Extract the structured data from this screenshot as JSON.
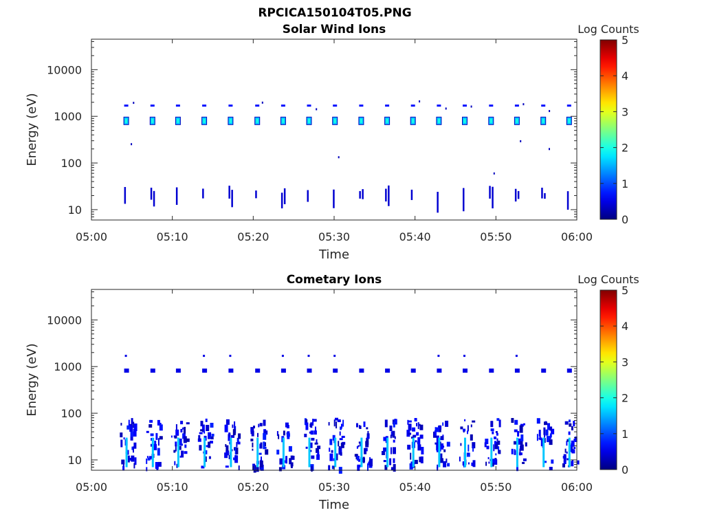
{
  "figure": {
    "title": "RPCICA150104T05.PNG"
  },
  "chart_data": [
    {
      "type": "heatmap",
      "title": "Solar Wind Ions",
      "xlabel": "Time",
      "ylabel": "Energy (eV)",
      "x_ticks": [
        "05:00",
        "05:10",
        "05:20",
        "05:30",
        "05:40",
        "05:50",
        "06:00"
      ],
      "xlim_minutes": [
        0,
        60
      ],
      "y_scale": "log",
      "ylim": [
        6,
        45000
      ],
      "y_ticks": [
        10,
        100,
        1000,
        10000
      ],
      "y_tick_labels": [
        "10",
        "100",
        "1000",
        "10000"
      ],
      "colorbar": {
        "label": "Log Counts",
        "range": [
          0,
          5
        ],
        "ticks": [
          "0",
          "1",
          "2",
          "3",
          "4",
          "5"
        ],
        "colormap": "jet"
      },
      "sweep_minutes": [
        4.3,
        7.55,
        10.7,
        13.95,
        17.2,
        20.5,
        23.7,
        26.9,
        30.1,
        33.35,
        36.55,
        39.75,
        42.95,
        46.15,
        49.4,
        52.6,
        55.85,
        59.05
      ],
      "features": [
        {
          "kind": "blob",
          "energy": 800,
          "log_counts": 1.6
        },
        {
          "kind": "dot",
          "energy": 1700,
          "log_counts": 0.7
        },
        {
          "kind": "streak",
          "energy_range": [
            13,
            28
          ],
          "log_counts": 0.4
        }
      ]
    },
    {
      "type": "heatmap",
      "title": "Cometary Ions",
      "xlabel": "Time",
      "ylabel": "Energy (eV)",
      "x_ticks": [
        "05:00",
        "05:10",
        "05:20",
        "05:30",
        "05:40",
        "05:50",
        "06:00"
      ],
      "xlim_minutes": [
        0,
        60
      ],
      "y_scale": "log",
      "ylim": [
        6,
        45000
      ],
      "y_ticks": [
        10,
        100,
        1000,
        10000
      ],
      "y_tick_labels": [
        "10",
        "100",
        "1000",
        "10000"
      ],
      "colorbar": {
        "label": "Log Counts",
        "range": [
          0,
          5
        ],
        "ticks": [
          "0",
          "1",
          "2",
          "3",
          "4",
          "5"
        ],
        "colormap": "jet"
      },
      "sweep_minutes": [
        4.3,
        7.55,
        10.7,
        13.95,
        17.2,
        20.5,
        23.7,
        26.9,
        30.1,
        33.35,
        36.55,
        39.75,
        42.95,
        46.15,
        49.4,
        52.6,
        55.85,
        59.05
      ],
      "features": [
        {
          "kind": "dash",
          "energy": 820,
          "log_counts": 0.5
        },
        {
          "kind": "cluster",
          "energy_range": [
            6,
            80
          ],
          "log_counts": 0.6
        },
        {
          "kind": "core",
          "energy_range": [
            7,
            30
          ],
          "log_counts": 1.6
        }
      ]
    }
  ]
}
